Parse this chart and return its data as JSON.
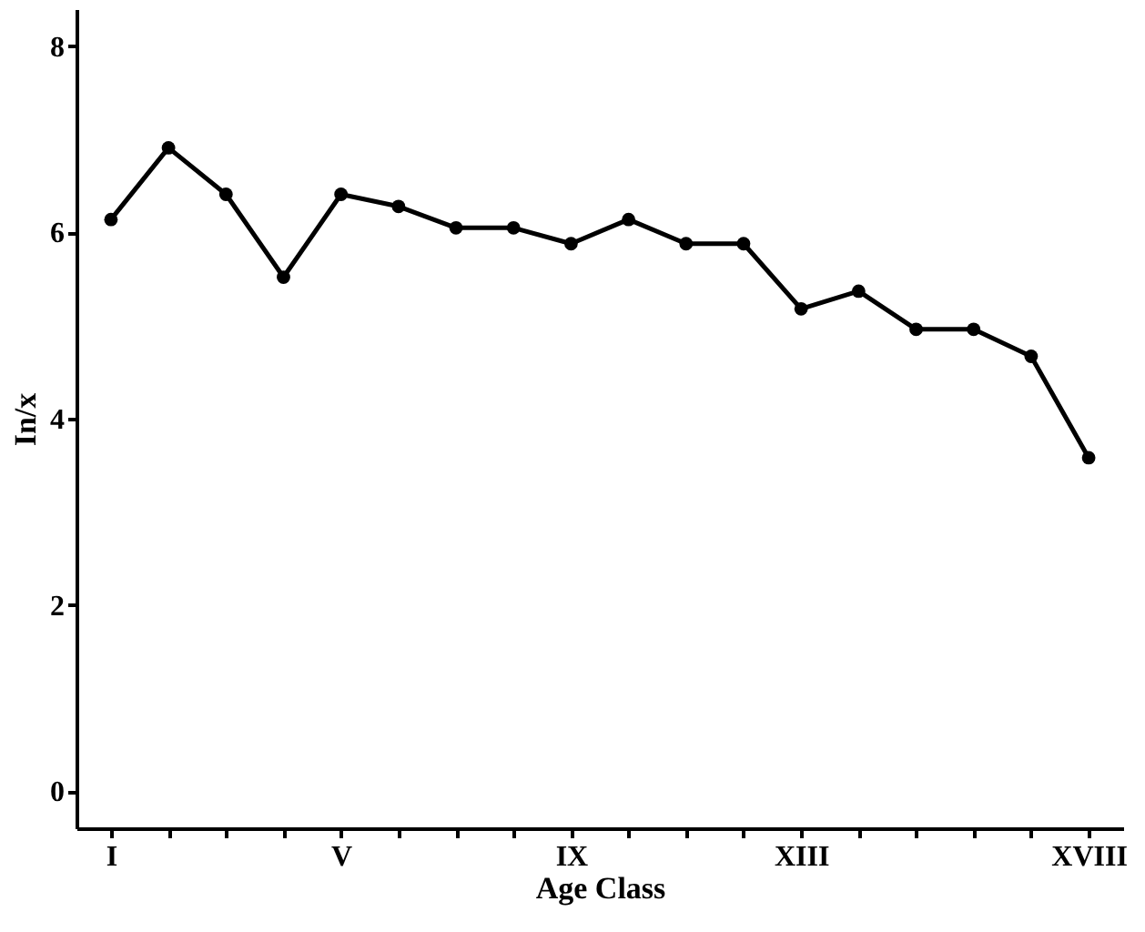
{
  "chart_data": {
    "type": "line",
    "xlabel": "Age Class",
    "ylabel": "In/x",
    "categories": [
      "I",
      null,
      null,
      null,
      "V",
      null,
      null,
      null,
      "IX",
      null,
      null,
      null,
      "XIII",
      null,
      null,
      null,
      null,
      "XVIII"
    ],
    "series": [
      {
        "color": "#000000",
        "values": [
          6.14,
          6.91,
          6.41,
          5.52,
          6.41,
          6.28,
          6.05,
          6.05,
          5.88,
          6.14,
          5.88,
          5.88,
          5.18,
          5.37,
          4.96,
          4.96,
          4.67,
          3.58
        ]
      }
    ],
    "ylim": [
      -0.4,
      8.4
    ],
    "yticks": [
      0,
      2,
      4,
      6,
      8
    ],
    "grid": false,
    "marker": "circle",
    "line_style": "solid"
  }
}
